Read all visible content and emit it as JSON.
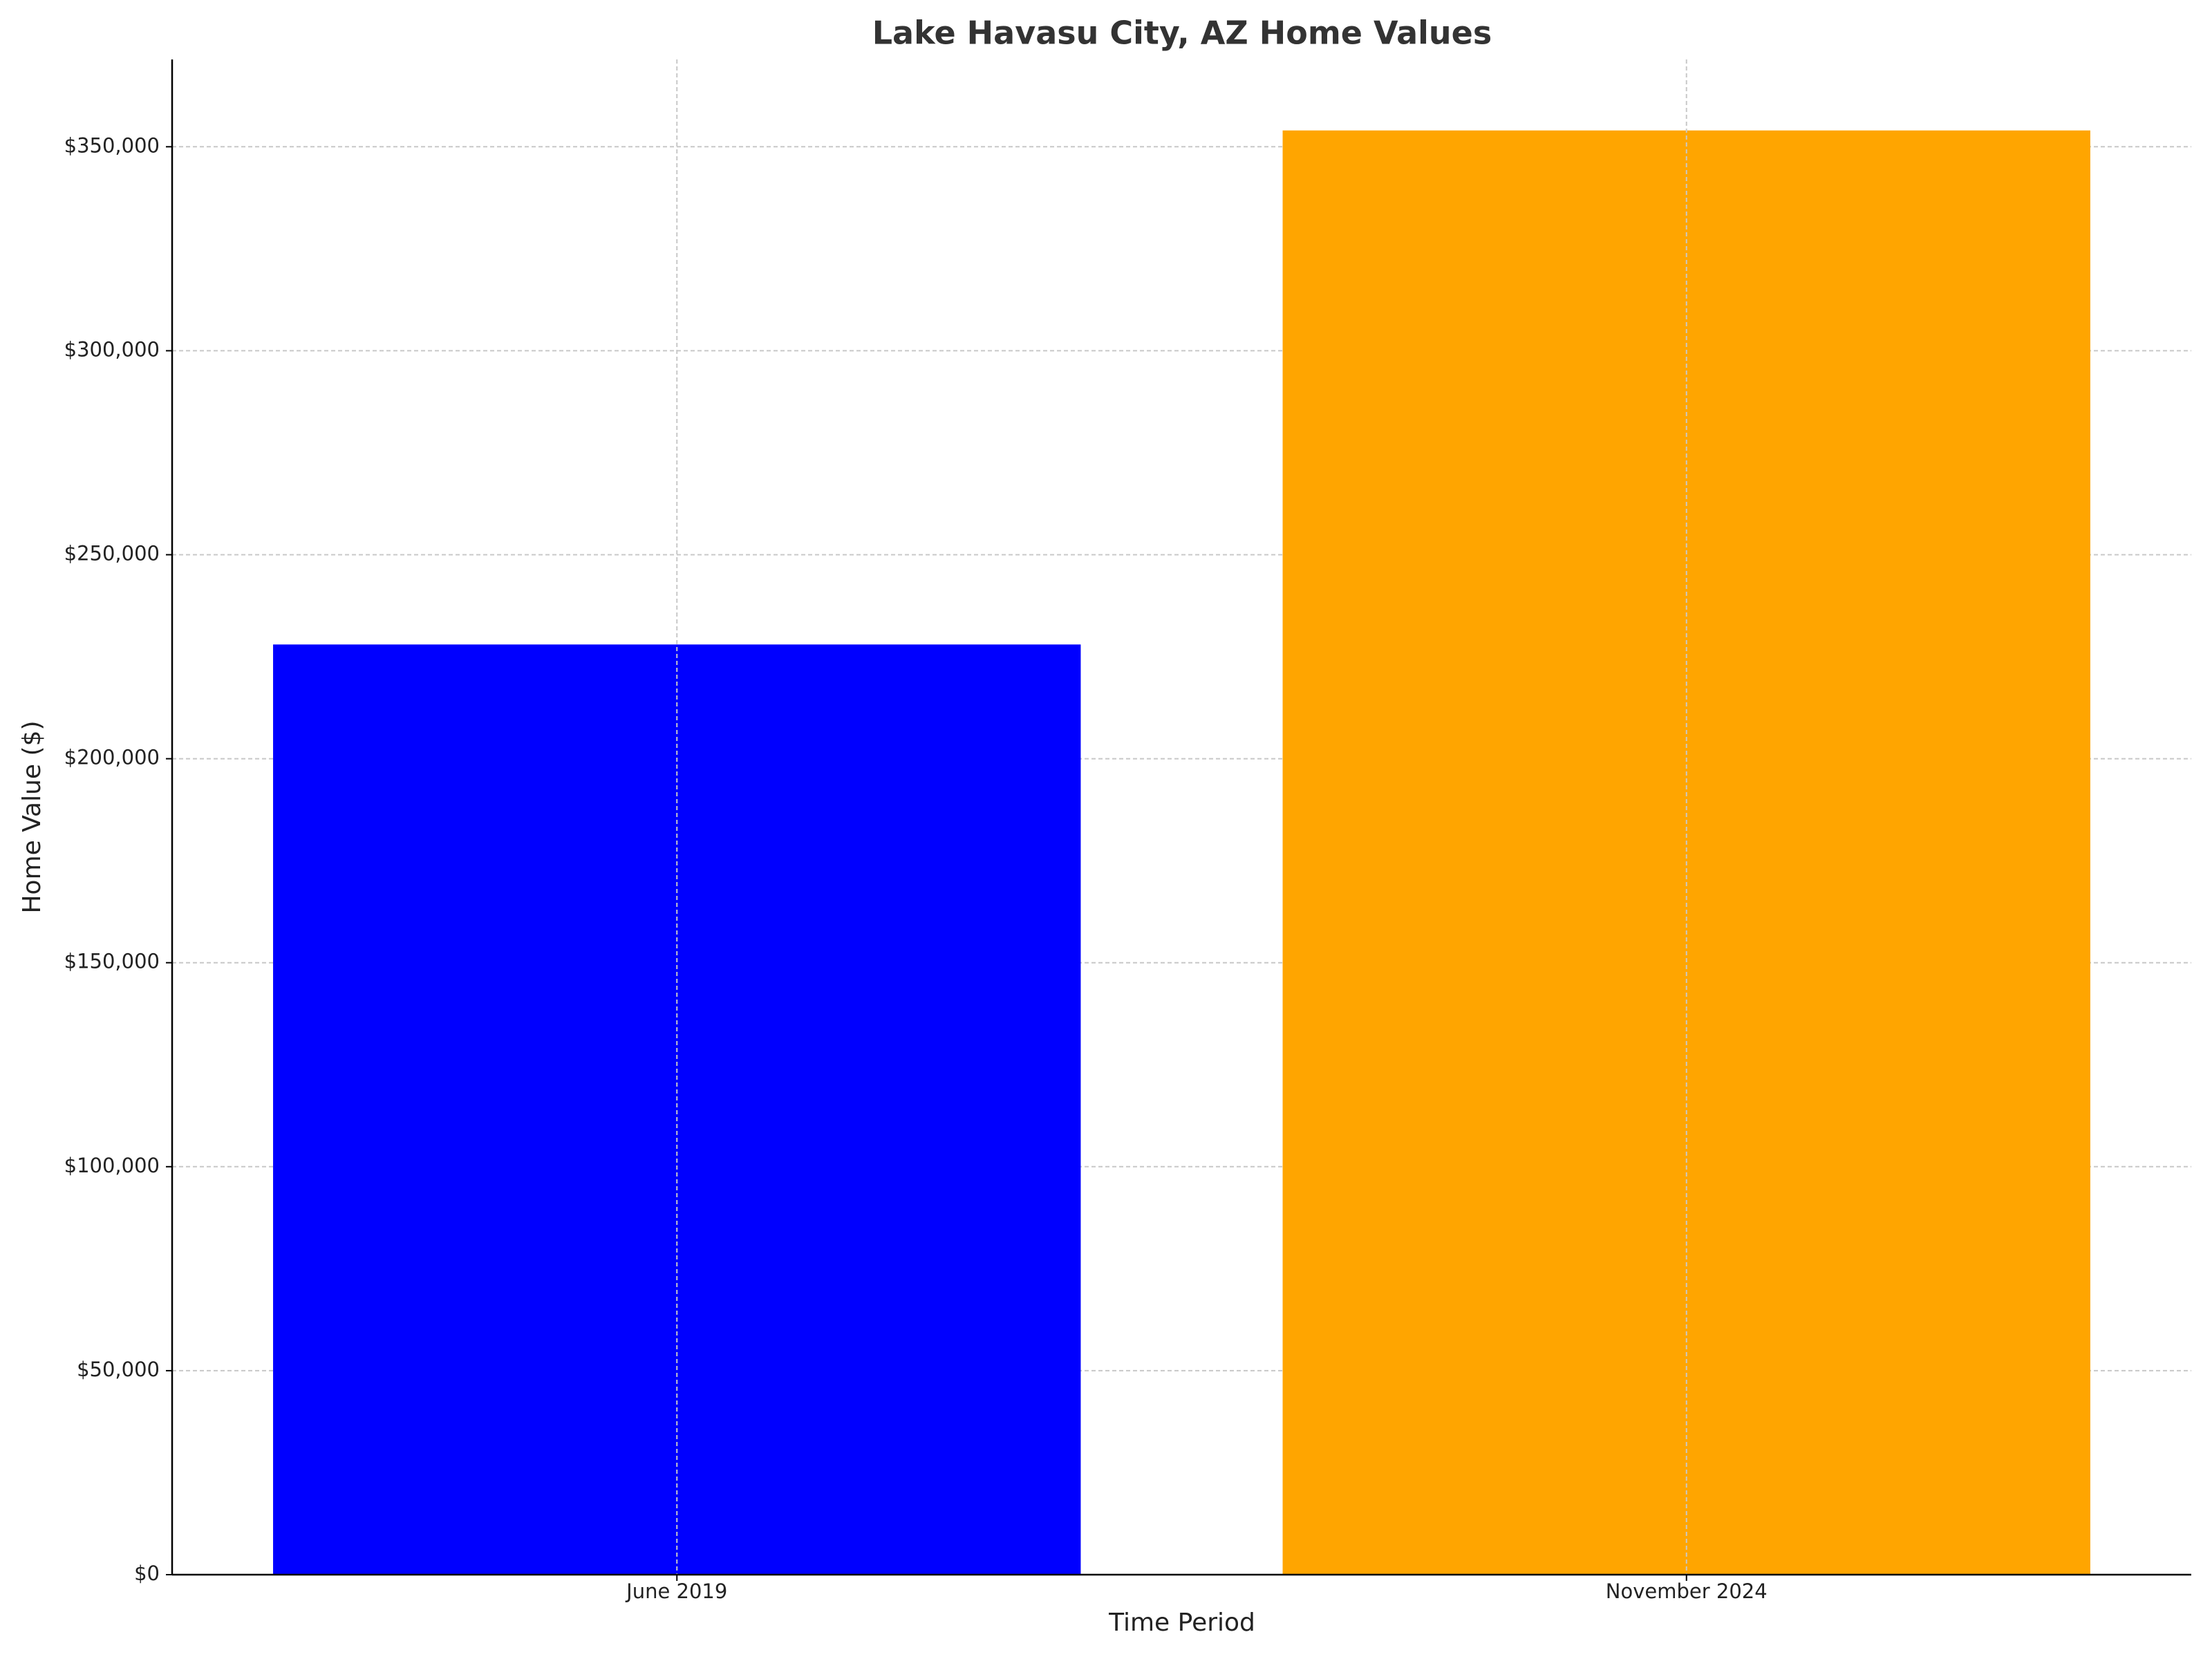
{
  "chart_data": {
    "type": "bar",
    "title": "Lake Havasu City, AZ Home Values",
    "x_label": "Time Period",
    "y_label": "Home Value ($)",
    "categories": [
      "June 2019",
      "November 2024"
    ],
    "values": [
      228000,
      354000
    ],
    "colors": [
      "#0000ff",
      "#ffa500"
    ],
    "ylim": [
      0,
      371400
    ],
    "yticks": [
      {
        "value": 0,
        "label": "$0"
      },
      {
        "value": 50000,
        "label": "$50,000"
      },
      {
        "value": 100000,
        "label": "$100,000"
      },
      {
        "value": 150000,
        "label": "$150,000"
      },
      {
        "value": 200000,
        "label": "$200,000"
      },
      {
        "value": 250000,
        "label": "$250,000"
      },
      {
        "value": 300000,
        "label": "$300,000"
      },
      {
        "value": 350000,
        "label": "$350,000"
      }
    ],
    "grid": true
  }
}
